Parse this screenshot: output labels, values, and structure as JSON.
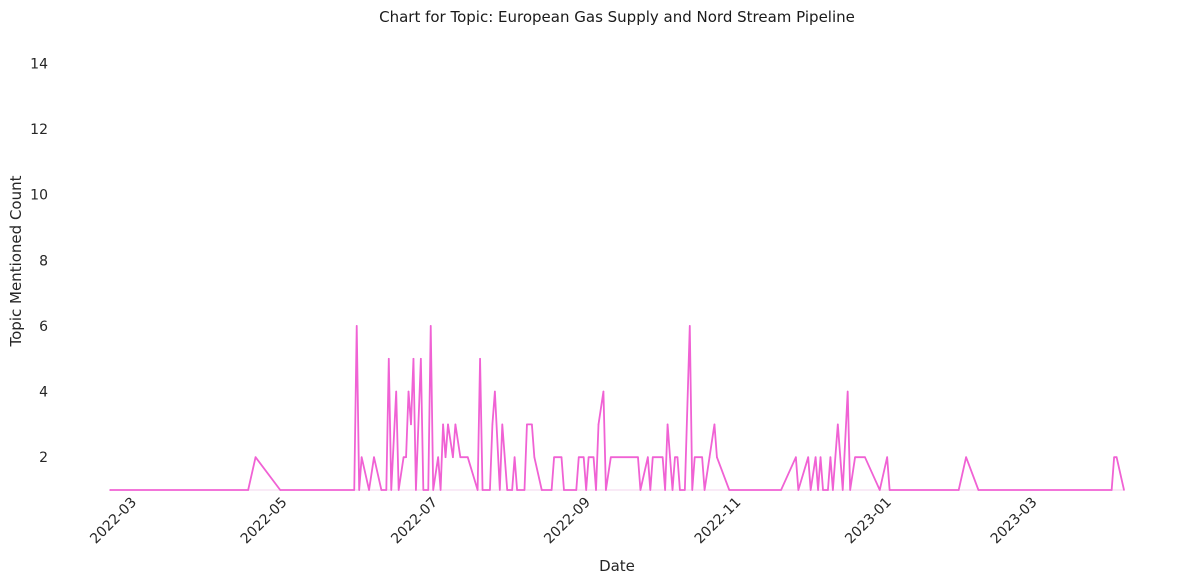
{
  "chart_data": {
    "type": "line",
    "title": "Chart for Topic: European Gas Supply and Nord Stream Pipeline",
    "xlabel": "Date",
    "ylabel": "Topic Mentioned Count",
    "x_range": [
      "2022-02-18",
      "2023-04-05"
    ],
    "ylim": [
      1,
      14.5
    ],
    "y_ticks": [
      2,
      4,
      6,
      8,
      10,
      12,
      14
    ],
    "x_ticks": [
      "2022-03",
      "2022-05",
      "2022-07",
      "2022-09",
      "2022-11",
      "2023-01",
      "2023-03"
    ],
    "x_tick_dates": [
      "2022-03-01",
      "2022-05-01",
      "2022-07-01",
      "2022-09-01",
      "2022-11-01",
      "2023-01-01",
      "2023-03-01"
    ],
    "grid": false,
    "series": [
      {
        "color": "#f062d4",
        "points": [
          [
            "2022-02-18",
            1
          ],
          [
            "2022-04-15",
            1
          ],
          [
            "2022-04-18",
            2
          ],
          [
            "2022-04-28",
            1
          ],
          [
            "2022-05-28",
            1
          ],
          [
            "2022-05-29",
            6
          ],
          [
            "2022-05-30",
            1
          ],
          [
            "2022-05-31",
            2
          ],
          [
            "2022-06-03",
            1
          ],
          [
            "2022-06-05",
            2
          ],
          [
            "2022-06-08",
            1
          ],
          [
            "2022-06-10",
            1
          ],
          [
            "2022-06-11",
            5
          ],
          [
            "2022-06-12",
            1
          ],
          [
            "2022-06-14",
            4
          ],
          [
            "2022-06-15",
            1
          ],
          [
            "2022-06-17",
            2
          ],
          [
            "2022-06-18",
            2
          ],
          [
            "2022-06-19",
            4
          ],
          [
            "2022-06-20",
            3
          ],
          [
            "2022-06-21",
            5
          ],
          [
            "2022-06-22",
            1
          ],
          [
            "2022-06-24",
            5
          ],
          [
            "2022-06-25",
            1
          ],
          [
            "2022-06-27",
            1
          ],
          [
            "2022-06-28",
            6
          ],
          [
            "2022-06-29",
            1
          ],
          [
            "2022-07-01",
            2
          ],
          [
            "2022-07-02",
            1
          ],
          [
            "2022-07-03",
            3
          ],
          [
            "2022-07-04",
            2
          ],
          [
            "2022-07-05",
            3
          ],
          [
            "2022-07-07",
            2
          ],
          [
            "2022-07-08",
            3
          ],
          [
            "2022-07-10",
            2
          ],
          [
            "2022-07-13",
            2
          ],
          [
            "2022-07-17",
            1
          ],
          [
            "2022-07-18",
            5
          ],
          [
            "2022-07-19",
            1
          ],
          [
            "2022-07-22",
            1
          ],
          [
            "2022-07-23",
            3
          ],
          [
            "2022-07-24",
            4
          ],
          [
            "2022-07-26",
            1
          ],
          [
            "2022-07-27",
            3
          ],
          [
            "2022-07-29",
            1
          ],
          [
            "2022-07-31",
            1
          ],
          [
            "2022-08-01",
            2
          ],
          [
            "2022-08-02",
            1
          ],
          [
            "2022-08-05",
            1
          ],
          [
            "2022-08-06",
            3
          ],
          [
            "2022-08-08",
            3
          ],
          [
            "2022-08-09",
            2
          ],
          [
            "2022-08-12",
            1
          ],
          [
            "2022-08-16",
            1
          ],
          [
            "2022-08-17",
            2
          ],
          [
            "2022-08-20",
            2
          ],
          [
            "2022-08-21",
            1
          ],
          [
            "2022-08-26",
            1
          ],
          [
            "2022-08-27",
            2
          ],
          [
            "2022-08-29",
            2
          ],
          [
            "2022-08-30",
            1
          ],
          [
            "2022-08-31",
            2
          ],
          [
            "2022-09-02",
            2
          ],
          [
            "2022-09-03",
            1
          ],
          [
            "2022-09-04",
            3
          ],
          [
            "2022-09-06",
            4
          ],
          [
            "2022-09-07",
            1
          ],
          [
            "2022-09-09",
            2
          ],
          [
            "2022-09-20",
            2
          ],
          [
            "2022-09-21",
            1
          ],
          [
            "2022-09-24",
            2
          ],
          [
            "2022-09-25",
            1
          ],
          [
            "2022-09-26",
            2
          ],
          [
            "2022-09-30",
            2
          ],
          [
            "2022-10-01",
            1
          ],
          [
            "2022-10-02",
            3
          ],
          [
            "2022-10-03",
            2
          ],
          [
            "2022-10-04",
            1
          ],
          [
            "2022-10-05",
            2
          ],
          [
            "2022-10-06",
            2
          ],
          [
            "2022-10-07",
            1
          ],
          [
            "2022-10-09",
            1
          ],
          [
            "2022-10-11",
            6
          ],
          [
            "2022-10-12",
            1
          ],
          [
            "2022-10-13",
            2
          ],
          [
            "2022-10-16",
            2
          ],
          [
            "2022-10-17",
            1
          ],
          [
            "2022-10-19",
            2
          ],
          [
            "2022-10-21",
            3
          ],
          [
            "2022-10-22",
            2
          ],
          [
            "2022-10-27",
            1
          ],
          [
            "2022-11-17",
            1
          ],
          [
            "2022-11-23",
            2
          ],
          [
            "2022-11-24",
            1
          ],
          [
            "2022-11-28",
            2
          ],
          [
            "2022-11-29",
            1
          ],
          [
            "2022-12-01",
            2
          ],
          [
            "2022-12-02",
            1
          ],
          [
            "2022-12-03",
            2
          ],
          [
            "2022-12-04",
            1
          ],
          [
            "2022-12-06",
            1
          ],
          [
            "2022-12-07",
            2
          ],
          [
            "2022-12-08",
            1
          ],
          [
            "2022-12-10",
            3
          ],
          [
            "2022-12-11",
            2
          ],
          [
            "2022-12-12",
            1
          ],
          [
            "2022-12-14",
            4
          ],
          [
            "2022-12-15",
            1
          ],
          [
            "2022-12-17",
            2
          ],
          [
            "2022-12-21",
            2
          ],
          [
            "2022-12-27",
            1
          ],
          [
            "2022-12-30",
            2
          ],
          [
            "2022-12-31",
            1
          ],
          [
            "2023-01-28",
            1
          ],
          [
            "2023-01-31",
            2
          ],
          [
            "2023-02-05",
            1
          ],
          [
            "2023-03-31",
            1
          ],
          [
            "2023-04-01",
            2
          ],
          [
            "2023-04-02",
            2
          ],
          [
            "2023-04-05",
            1
          ]
        ]
      }
    ]
  }
}
